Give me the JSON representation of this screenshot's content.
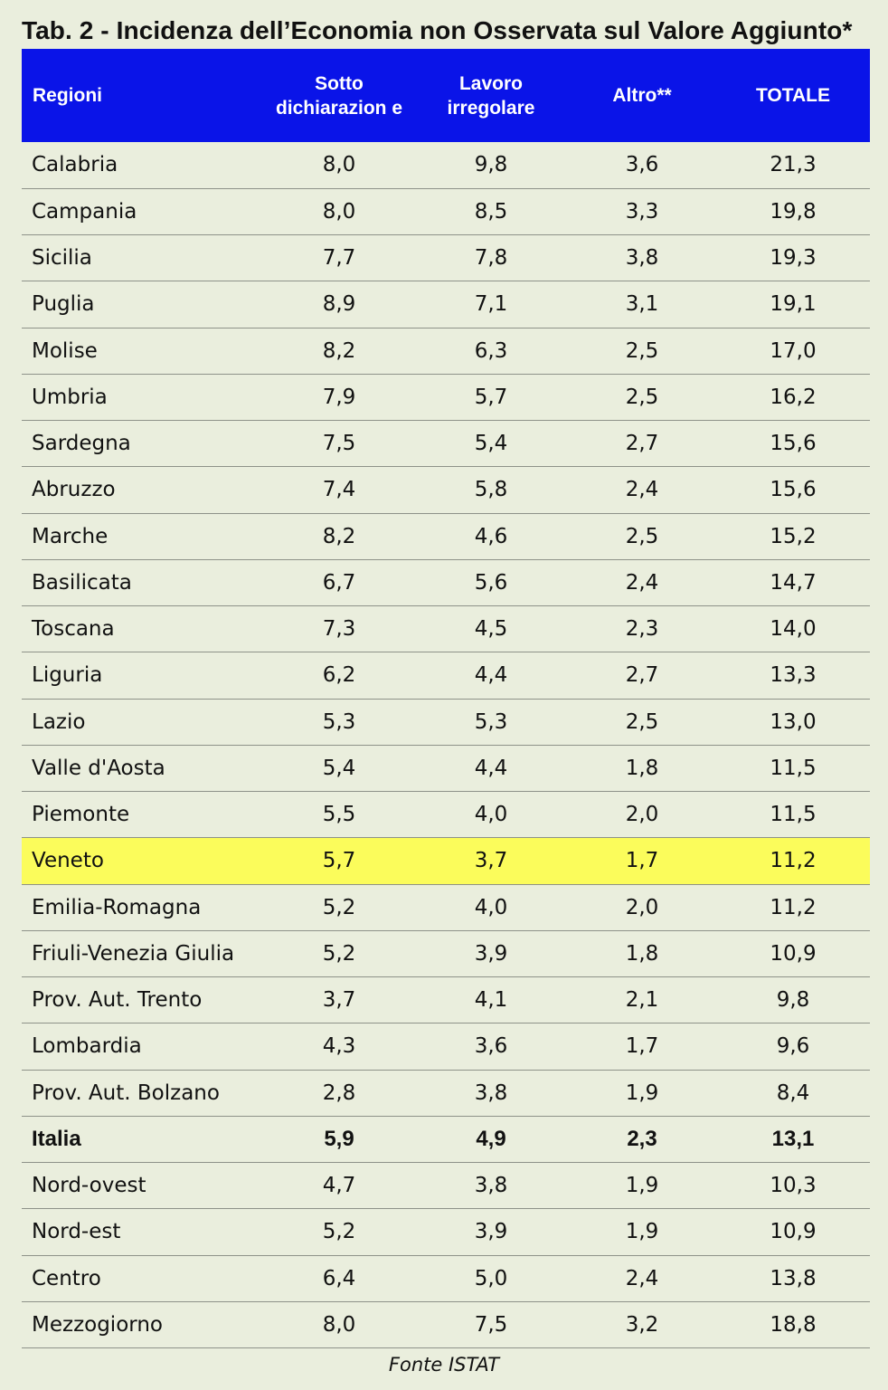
{
  "title": "Tab. 2 - Incidenza dell’Economia non Osservata sul Valore Aggiunto*",
  "columns": [
    "Regioni",
    "Sotto dichiarazion e",
    "Lavoro irregolare",
    "Altro**",
    "TOTALE"
  ],
  "rows": [
    {
      "region": "Calabria",
      "values": [
        "8,0",
        "9,8",
        "3,6",
        "21,3"
      ]
    },
    {
      "region": "Campania",
      "values": [
        "8,0",
        "8,5",
        "3,3",
        "19,8"
      ]
    },
    {
      "region": "Sicilia",
      "values": [
        "7,7",
        "7,8",
        "3,8",
        "19,3"
      ]
    },
    {
      "region": "Puglia",
      "values": [
        "8,9",
        "7,1",
        "3,1",
        "19,1"
      ]
    },
    {
      "region": "Molise",
      "values": [
        "8,2",
        "6,3",
        "2,5",
        "17,0"
      ]
    },
    {
      "region": "Umbria",
      "values": [
        "7,9",
        "5,7",
        "2,5",
        "16,2"
      ]
    },
    {
      "region": "Sardegna",
      "values": [
        "7,5",
        "5,4",
        "2,7",
        "15,6"
      ]
    },
    {
      "region": "Abruzzo",
      "values": [
        "7,4",
        "5,8",
        "2,4",
        "15,6"
      ]
    },
    {
      "region": "Marche",
      "values": [
        "8,2",
        "4,6",
        "2,5",
        "15,2"
      ]
    },
    {
      "region": "Basilicata",
      "values": [
        "6,7",
        "5,6",
        "2,4",
        "14,7"
      ]
    },
    {
      "region": "Toscana",
      "values": [
        "7,3",
        "4,5",
        "2,3",
        "14,0"
      ]
    },
    {
      "region": "Liguria",
      "values": [
        "6,2",
        "4,4",
        "2,7",
        "13,3"
      ]
    },
    {
      "region": "Lazio",
      "values": [
        "5,3",
        "5,3",
        "2,5",
        "13,0"
      ]
    },
    {
      "region": "Valle d'Aosta",
      "values": [
        "5,4",
        "4,4",
        "1,8",
        "11,5"
      ]
    },
    {
      "region": "Piemonte",
      "values": [
        "5,5",
        "4,0",
        "2,0",
        "11,5"
      ]
    },
    {
      "region": "Veneto",
      "values": [
        "5,7",
        "3,7",
        "1,7",
        "11,2"
      ],
      "style": "highlight"
    },
    {
      "region": "Emilia-Romagna",
      "values": [
        "5,2",
        "4,0",
        "2,0",
        "11,2"
      ]
    },
    {
      "region": "Friuli-Venezia Giulia",
      "values": [
        "5,2",
        "3,9",
        "1,8",
        "10,9"
      ]
    },
    {
      "region": "Prov. Aut. Trento",
      "values": [
        "3,7",
        "4,1",
        "2,1",
        "9,8"
      ]
    },
    {
      "region": "Lombardia",
      "values": [
        "4,3",
        "3,6",
        "1,7",
        "9,6"
      ]
    },
    {
      "region": "Prov. Aut. Bolzano",
      "values": [
        "2,8",
        "3,8",
        "1,9",
        "8,4"
      ]
    },
    {
      "region": "Italia",
      "values": [
        "5,9",
        "4,9",
        "2,3",
        "13,1"
      ],
      "style": "bold"
    },
    {
      "region": "Nord-ovest",
      "values": [
        "4,7",
        "3,8",
        "1,9",
        "10,3"
      ]
    },
    {
      "region": "Nord-est",
      "values": [
        "5,2",
        "3,9",
        "1,9",
        "10,9"
      ]
    },
    {
      "region": "Centro",
      "values": [
        "6,4",
        "5,0",
        "2,4",
        "13,8"
      ]
    },
    {
      "region": "Mezzogiorno",
      "values": [
        "8,0",
        "7,5",
        "3,2",
        "18,8"
      ]
    }
  ],
  "source": "Fonte ISTAT",
  "colors": {
    "header_bg": "#0a14e8",
    "highlight_bg": "#fbfc5b",
    "page_bg": "#eaeedd"
  }
}
